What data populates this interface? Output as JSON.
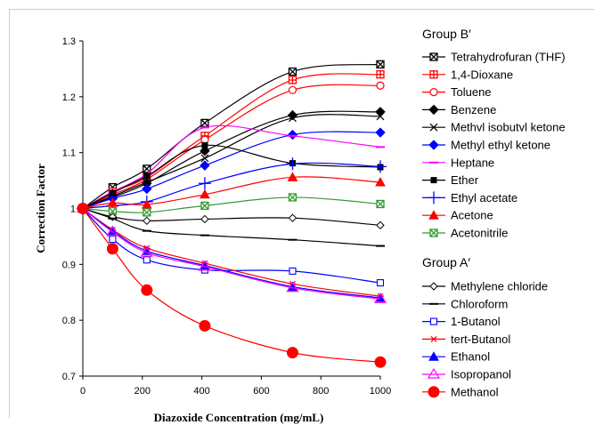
{
  "chart_data": {
    "type": "line",
    "title": "",
    "xlabel": "Diazoxide Concentration (mg/mL)",
    "ylabel": "Correction Factor",
    "xlim": [
      0,
      1000
    ],
    "ylim": [
      0.7,
      1.3
    ],
    "xticks": [
      0,
      200,
      400,
      600,
      800,
      1000
    ],
    "xtick_labels": [
      "0",
      "200",
      "400",
      "600",
      "800",
      "1000"
    ],
    "yticks": [
      0.7,
      0.8,
      0.9,
      1.0,
      1.1,
      1.2,
      1.3
    ],
    "ytick_labels": [
      "0.7",
      "0.8",
      "0.9",
      "1",
      "1.1",
      "1.2",
      "1.3"
    ],
    "grid": false,
    "legend_position": "right",
    "legend_groups": [
      {
        "label": "Group B′",
        "series_start": 0,
        "series_end": 10
      },
      {
        "label": "Group A′",
        "series_start": 11,
        "series_end": 17
      }
    ],
    "series": [
      {
        "name": "Tetrahydrofuran (THF)",
        "color": "#000000",
        "marker": "boxx",
        "x": [
          0,
          100,
          215,
          410,
          705,
          1000
        ],
        "y": [
          1.0,
          1.038,
          1.071,
          1.153,
          1.245,
          1.258
        ]
      },
      {
        "name": "1,4-Dioxane",
        "color": "#ff0000",
        "marker": "boxplus",
        "x": [
          0,
          100,
          215,
          410,
          705,
          1000
        ],
        "y": [
          1.0,
          1.03,
          1.056,
          1.13,
          1.23,
          1.24
        ]
      },
      {
        "name": "Toluene",
        "color": "#ff0000",
        "marker": "circle-open",
        "x": [
          0,
          100,
          215,
          410,
          705,
          1000
        ],
        "y": [
          1.0,
          1.025,
          1.052,
          1.123,
          1.212,
          1.22
        ]
      },
      {
        "name": "Benzene",
        "color": "#000000",
        "marker": "diamond-filled",
        "x": [
          0,
          100,
          215,
          410,
          705,
          1000
        ],
        "y": [
          1.0,
          1.02,
          1.045,
          1.103,
          1.167,
          1.173
        ]
      },
      {
        "name": "Methyl isobutyl ketone",
        "legend_label": "Methvl isobutvl ketone",
        "color": "#000000",
        "marker": "x",
        "x": [
          0,
          100,
          215,
          410,
          705,
          1000
        ],
        "y": [
          1.0,
          1.022,
          1.047,
          1.09,
          1.162,
          1.165
        ]
      },
      {
        "name": "Methyl ethyl ketone",
        "color": "#0000ff",
        "marker": "diamond-filled",
        "x": [
          0,
          100,
          215,
          410,
          705,
          1000
        ],
        "y": [
          1.0,
          1.018,
          1.035,
          1.077,
          1.132,
          1.136
        ]
      },
      {
        "name": "Heptane",
        "color": "#ff00ff",
        "marker": "dash",
        "x": [
          0,
          100,
          215,
          410,
          705,
          1000
        ],
        "y": [
          1.0,
          1.03,
          1.062,
          1.145,
          1.13,
          1.11
        ]
      },
      {
        "name": "Ether",
        "color": "#000000",
        "marker": "square-filled",
        "x": [
          0,
          100,
          215,
          410,
          705,
          1000
        ],
        "y": [
          1.0,
          1.028,
          1.058,
          1.113,
          1.081,
          1.074
        ]
      },
      {
        "name": "Ethyl acetate",
        "color": "#0000ff",
        "marker": "plus",
        "x": [
          0,
          100,
          215,
          410,
          705,
          1000
        ],
        "y": [
          1.0,
          1.005,
          1.012,
          1.045,
          1.08,
          1.075
        ]
      },
      {
        "name": "Acetone",
        "color": "#ff0000",
        "marker": "triangle-filled",
        "x": [
          0,
          100,
          215,
          410,
          705,
          1000
        ],
        "y": [
          1.0,
          1.01,
          1.007,
          1.025,
          1.056,
          1.047
        ]
      },
      {
        "name": "Acetonitrile",
        "color": "#339933",
        "marker": "boxx-green",
        "x": [
          0,
          100,
          215,
          410,
          705,
          1000
        ],
        "y": [
          1.0,
          0.995,
          0.993,
          1.005,
          1.02,
          1.008
        ]
      },
      {
        "name": "Methylene chloride",
        "color": "#000000",
        "marker": "diamond-open",
        "x": [
          0,
          100,
          215,
          410,
          705,
          1000
        ],
        "y": [
          1.0,
          0.985,
          0.978,
          0.981,
          0.983,
          0.97
        ]
      },
      {
        "name": "Chloroform",
        "color": "#000000",
        "marker": "dash",
        "x": [
          0,
          100,
          215,
          410,
          705,
          1000
        ],
        "y": [
          1.0,
          0.982,
          0.96,
          0.952,
          0.944,
          0.933
        ]
      },
      {
        "name": "1-Butanol",
        "color": "#0000ff",
        "marker": "square-open",
        "x": [
          0,
          100,
          215,
          410,
          705,
          1000
        ],
        "y": [
          1.0,
          0.945,
          0.908,
          0.89,
          0.888,
          0.867
        ]
      },
      {
        "name": "tert-Butanol",
        "color": "#ff0000",
        "marker": "asterisk",
        "x": [
          0,
          100,
          215,
          410,
          705,
          1000
        ],
        "y": [
          1.0,
          0.962,
          0.929,
          0.902,
          0.865,
          0.843
        ]
      },
      {
        "name": "Ethanol",
        "color": "#0000ff",
        "marker": "triangle-filled",
        "x": [
          0,
          100,
          215,
          410,
          705,
          1000
        ],
        "y": [
          1.0,
          0.96,
          0.924,
          0.898,
          0.86,
          0.84
        ]
      },
      {
        "name": "Isopropanol",
        "color": "#ff00ff",
        "marker": "triangle-open",
        "x": [
          0,
          100,
          215,
          410,
          705,
          1000
        ],
        "y": [
          1.0,
          0.958,
          0.921,
          0.896,
          0.858,
          0.838
        ]
      },
      {
        "name": "Methanol",
        "color": "#ff0000",
        "marker": "circle-filled-large",
        "x": [
          0,
          100,
          215,
          410,
          705,
          1000
        ],
        "y": [
          1.0,
          0.928,
          0.854,
          0.79,
          0.742,
          0.725
        ]
      }
    ]
  }
}
